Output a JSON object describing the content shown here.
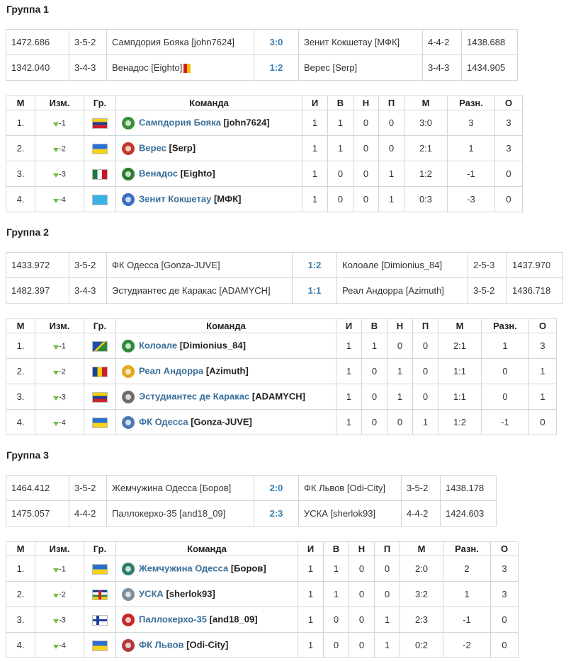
{
  "groups": [
    {
      "title": "Группа 1",
      "matches": [
        {
          "rating1": "1472.686",
          "formation1": "3-5-2",
          "team1": "Сампдория Бояка [john7624]",
          "score": "3:0",
          "team2": "Зенит Кокшетау [МФК]",
          "formation2": "4-4-2",
          "rating2": "1438.688"
        },
        {
          "rating1": "1342.040",
          "formation1": "3-4-3",
          "team1": "Венадос [Eighto]",
          "score": "1:2",
          "team2": "Верес [Serp]",
          "formation2": "3-4-3",
          "rating2": "1434.905"
        }
      ],
      "standings": [
        {
          "pos": "1.",
          "change": "1",
          "flag": "venezuela",
          "crest_color": "#3a8f3a",
          "team": "Сампдория Бояка",
          "owner": "[john7624]",
          "p": "1",
          "w": "1",
          "d": "0",
          "l": "0",
          "goals": "3:0",
          "diff": "3",
          "pts": "3"
        },
        {
          "pos": "2.",
          "change": "2",
          "flag": "ukraine",
          "crest_color": "#c0392b",
          "team": "Верес",
          "owner": "[Serp]",
          "p": "1",
          "w": "1",
          "d": "0",
          "l": "0",
          "goals": "2:1",
          "diff": "1",
          "pts": "3"
        },
        {
          "pos": "3.",
          "change": "3",
          "flag": "mexico",
          "crest_color": "#2f7d32",
          "team": "Венадос",
          "owner": "[Eighto]",
          "p": "1",
          "w": "0",
          "d": "0",
          "l": "1",
          "goals": "1:2",
          "diff": "-1",
          "pts": "0"
        },
        {
          "pos": "4.",
          "change": "4",
          "flag": "kazakhstan",
          "crest_color": "#3b6fc4",
          "team": "Зенит Кокшетау",
          "owner": "[МФК]",
          "p": "1",
          "w": "0",
          "d": "0",
          "l": "1",
          "goals": "0:3",
          "diff": "-3",
          "pts": "0"
        }
      ]
    },
    {
      "title": "Группа 2",
      "matches": [
        {
          "rating1": "1433.972",
          "formation1": "3-5-2",
          "team1": "ФК Одесса [Gonza-JUVE]",
          "score": "1:2",
          "team2": "Колоале [Dimionius_84]",
          "formation2": "2-5-3",
          "rating2": "1437.970"
        },
        {
          "rating1": "1482.397",
          "formation1": "3-4-3",
          "team1": "Эстудиантес де Каракас [ADAMYCH]",
          "score": "1:1",
          "team2": "Реал Андорра [Azimuth]",
          "formation2": "3-5-2",
          "rating2": "1436.718"
        }
      ],
      "standings": [
        {
          "pos": "1.",
          "change": "1",
          "flag": "solomon",
          "crest_color": "#2e8b3a",
          "team": "Колоале",
          "owner": "[Dimionius_84]",
          "p": "1",
          "w": "1",
          "d": "0",
          "l": "0",
          "goals": "2:1",
          "diff": "1",
          "pts": "3"
        },
        {
          "pos": "2.",
          "change": "2",
          "flag": "andorra",
          "crest_color": "#e0a81e",
          "team": "Реал Андорра",
          "owner": "[Azimuth]",
          "p": "1",
          "w": "0",
          "d": "1",
          "l": "0",
          "goals": "1:1",
          "diff": "0",
          "pts": "1"
        },
        {
          "pos": "3.",
          "change": "3",
          "flag": "venezuela",
          "crest_color": "#6d6d6d",
          "team": "Эстудиантес де Каракас",
          "owner": "[ADAMYCH]",
          "p": "1",
          "w": "0",
          "d": "1",
          "l": "0",
          "goals": "1:1",
          "diff": "0",
          "pts": "1"
        },
        {
          "pos": "4.",
          "change": "4",
          "flag": "ukraine",
          "crest_color": "#4a7ab0",
          "team": "ФК Одесса",
          "owner": "[Gonza-JUVE]",
          "p": "1",
          "w": "0",
          "d": "0",
          "l": "1",
          "goals": "1:2",
          "diff": "-1",
          "pts": "0"
        }
      ]
    },
    {
      "title": "Группа 3",
      "matches": [
        {
          "rating1": "1464.412",
          "formation1": "3-5-2",
          "team1": "Жемчужина Одесса [Боров]",
          "score": "2:0",
          "team2": "ФК Львов [Odi-City]",
          "formation2": "3-5-2",
          "rating2": "1438.178"
        },
        {
          "rating1": "1475.057",
          "formation1": "4-4-2",
          "team1": "Паллокерхо-35 [and18_09]",
          "score": "2:3",
          "team2": "УСКА [sherlok93]",
          "formation2": "4-4-2",
          "rating2": "1424.603"
        }
      ],
      "standings": [
        {
          "pos": "1.",
          "change": "1",
          "flag": "ukraine",
          "crest_color": "#2f7f6f",
          "team": "Жемчужина Одесса",
          "owner": "[Боров]",
          "p": "1",
          "w": "1",
          "d": "0",
          "l": "0",
          "goals": "2:0",
          "diff": "2",
          "pts": "3"
        },
        {
          "pos": "2.",
          "change": "2",
          "flag": "car",
          "crest_color": "#7c8f9e",
          "team": "УСКА",
          "owner": "[sherlok93]",
          "p": "1",
          "w": "1",
          "d": "0",
          "l": "0",
          "goals": "3:2",
          "diff": "1",
          "pts": "3"
        },
        {
          "pos": "3.",
          "change": "3",
          "flag": "finland",
          "crest_color": "#c62828",
          "team": "Паллокерхо-35",
          "owner": "[and18_09]",
          "p": "1",
          "w": "0",
          "d": "0",
          "l": "1",
          "goals": "2:3",
          "diff": "-1",
          "pts": "0"
        },
        {
          "pos": "4.",
          "change": "4",
          "flag": "ukraine",
          "crest_color": "#b23a3a",
          "team": "ФК Львов",
          "owner": "[Odi-City]",
          "p": "1",
          "w": "0",
          "d": "0",
          "l": "1",
          "goals": "0:2",
          "diff": "-2",
          "pts": "0"
        }
      ]
    }
  ],
  "standings_headers": [
    "М",
    "Изм.",
    "Гр.",
    "Команда",
    "И",
    "В",
    "Н",
    "П",
    "М",
    "Разн.",
    "О"
  ]
}
